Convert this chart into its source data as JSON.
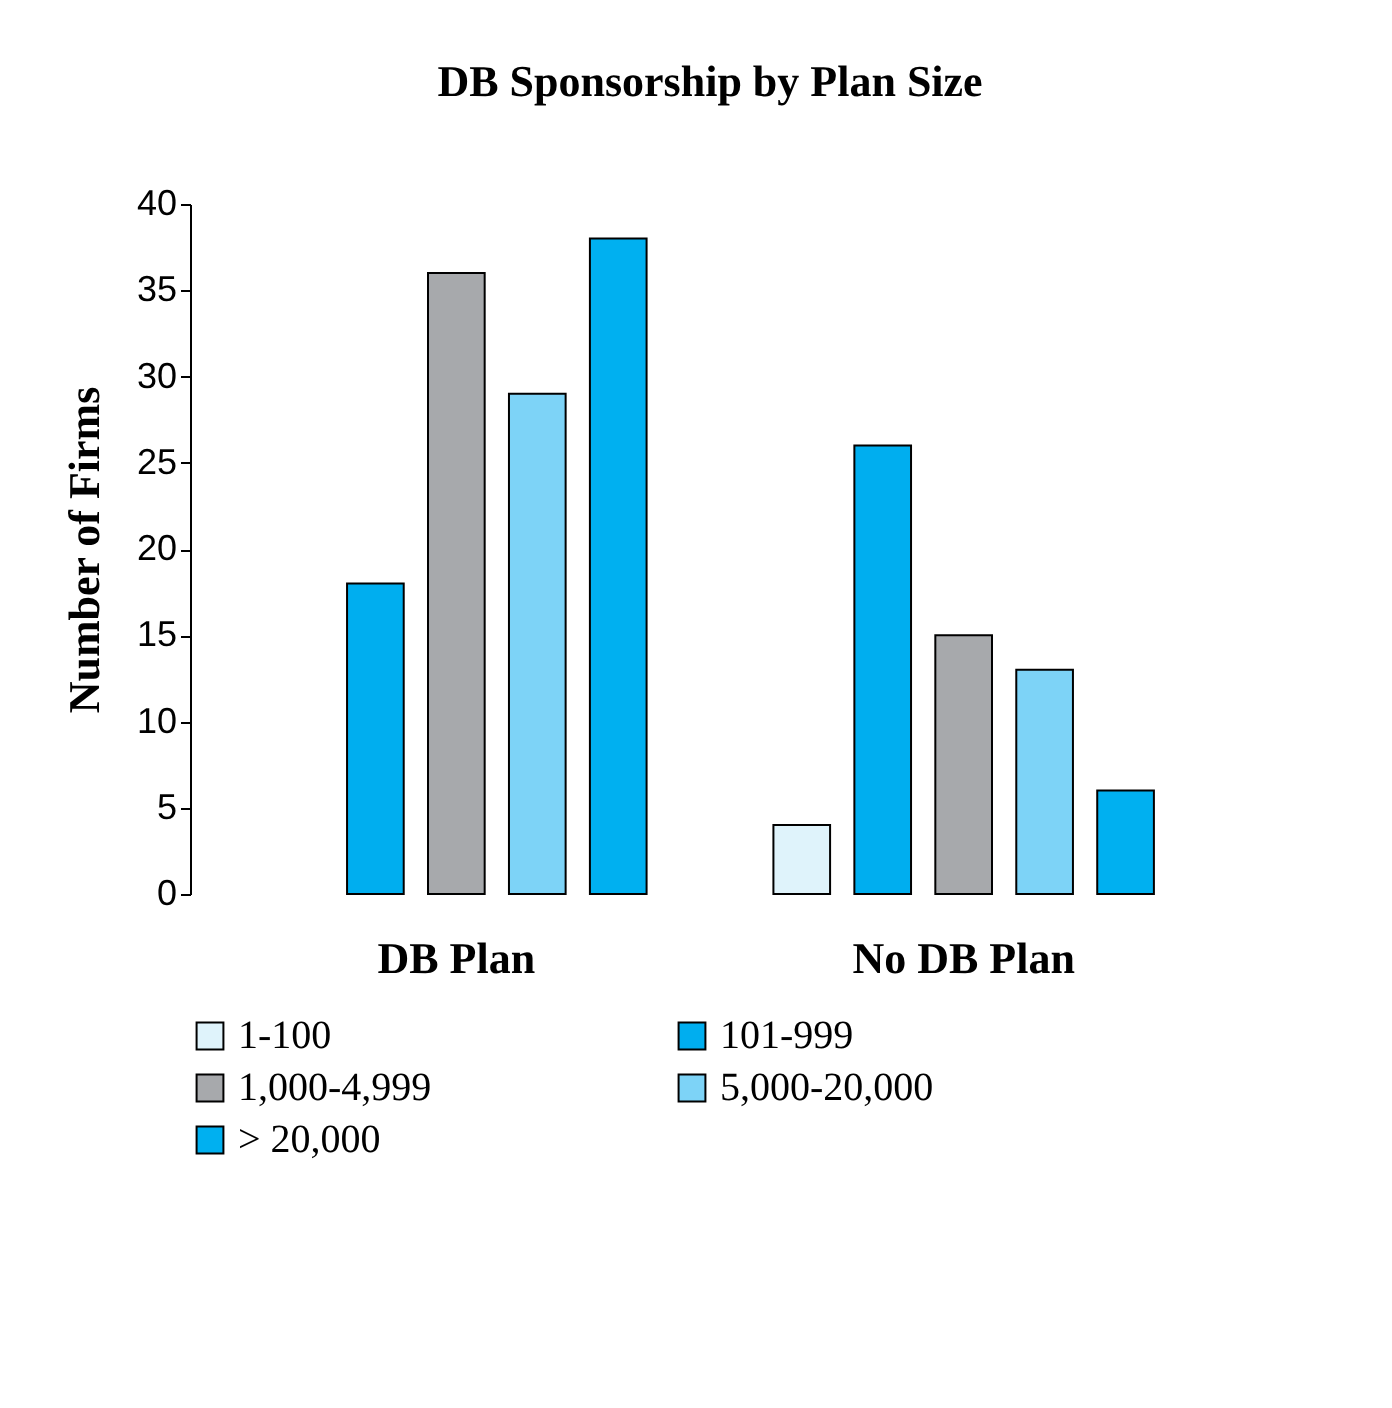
{
  "chart_data": {
    "type": "bar",
    "title": "DB Sponsorship by Plan Size",
    "ylabel": "Number of Firms",
    "categories": [
      "DB Plan",
      "No DB Plan"
    ],
    "series": [
      {
        "name": "1-100",
        "color": "#dff3fb",
        "values": [
          null,
          4
        ]
      },
      {
        "name": "101-999",
        "color": "#00aeef",
        "values": [
          18,
          26
        ]
      },
      {
        "name": "1,000-4,999",
        "color": "#a7a9ac",
        "values": [
          36,
          15
        ]
      },
      {
        "name": "5,000-20,000",
        "color": "#7dd3f7",
        "values": [
          29,
          13
        ]
      },
      {
        "name": "> 20,000",
        "color": "#00b0f0",
        "values": [
          38,
          6
        ]
      }
    ],
    "ylim": [
      0,
      40
    ],
    "yticks": [
      0,
      5,
      10,
      15,
      20,
      25,
      30,
      35,
      40
    ],
    "grid": false,
    "legend": "bottom"
  }
}
